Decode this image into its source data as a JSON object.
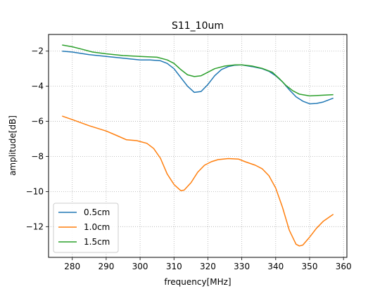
{
  "chart_data": {
    "type": "line",
    "title": "S11_10um",
    "xlabel": "frequency[MHz]",
    "ylabel": "amplitude[dB]",
    "xlim": [
      273,
      361
    ],
    "ylim": [
      -13.75,
      -1.05
    ],
    "xticks": [
      280,
      290,
      300,
      310,
      320,
      330,
      340,
      350,
      360
    ],
    "yticks": [
      -2,
      -4,
      -6,
      -8,
      -10,
      -12
    ],
    "xtick_labels": [
      "280",
      "290",
      "300",
      "310",
      "320",
      "330",
      "340",
      "350",
      "360"
    ],
    "ytick_labels": [
      "−2",
      "−4",
      "−6",
      "−8",
      "−10",
      "−12"
    ],
    "grid": true,
    "legend_position": "lower-left",
    "series": [
      {
        "name": "0.5cm",
        "color": "#1f77b4",
        "points": [
          [
            277,
            -2.0
          ],
          [
            280,
            -2.05
          ],
          [
            285,
            -2.2
          ],
          [
            290,
            -2.3
          ],
          [
            295,
            -2.4
          ],
          [
            300,
            -2.5
          ],
          [
            303,
            -2.5
          ],
          [
            306,
            -2.55
          ],
          [
            308,
            -2.7
          ],
          [
            310,
            -3.0
          ],
          [
            312,
            -3.5
          ],
          [
            314,
            -4.0
          ],
          [
            316,
            -4.35
          ],
          [
            318,
            -4.3
          ],
          [
            320,
            -3.9
          ],
          [
            322,
            -3.4
          ],
          [
            324,
            -3.05
          ],
          [
            326,
            -2.88
          ],
          [
            328,
            -2.8
          ],
          [
            330,
            -2.78
          ],
          [
            333,
            -2.88
          ],
          [
            336,
            -3.0
          ],
          [
            338,
            -3.15
          ],
          [
            340,
            -3.4
          ],
          [
            342,
            -3.75
          ],
          [
            344,
            -4.2
          ],
          [
            346,
            -4.6
          ],
          [
            348,
            -4.85
          ],
          [
            350,
            -5.0
          ],
          [
            352,
            -4.98
          ],
          [
            354,
            -4.9
          ],
          [
            357,
            -4.68
          ]
        ]
      },
      {
        "name": "1.0cm",
        "color": "#ff7f0e",
        "points": [
          [
            277,
            -5.7
          ],
          [
            280,
            -5.9
          ],
          [
            285,
            -6.25
          ],
          [
            290,
            -6.55
          ],
          [
            293,
            -6.8
          ],
          [
            296,
            -7.05
          ],
          [
            299,
            -7.1
          ],
          [
            302,
            -7.25
          ],
          [
            304,
            -7.55
          ],
          [
            306,
            -8.1
          ],
          [
            308,
            -9.0
          ],
          [
            310,
            -9.6
          ],
          [
            312,
            -9.95
          ],
          [
            313,
            -9.92
          ],
          [
            315,
            -9.5
          ],
          [
            317,
            -8.9
          ],
          [
            319,
            -8.5
          ],
          [
            321,
            -8.3
          ],
          [
            323,
            -8.18
          ],
          [
            326,
            -8.12
          ],
          [
            329,
            -8.15
          ],
          [
            331,
            -8.3
          ],
          [
            334,
            -8.5
          ],
          [
            336,
            -8.7
          ],
          [
            338,
            -9.1
          ],
          [
            340,
            -9.8
          ],
          [
            342,
            -10.9
          ],
          [
            344,
            -12.2
          ],
          [
            346,
            -13.0
          ],
          [
            347,
            -13.1
          ],
          [
            348,
            -13.05
          ],
          [
            350,
            -12.6
          ],
          [
            352,
            -12.1
          ],
          [
            354,
            -11.7
          ],
          [
            357,
            -11.3
          ]
        ]
      },
      {
        "name": "1.5cm",
        "color": "#2ca02c",
        "points": [
          [
            277,
            -1.65
          ],
          [
            280,
            -1.75
          ],
          [
            283,
            -1.9
          ],
          [
            286,
            -2.05
          ],
          [
            290,
            -2.15
          ],
          [
            295,
            -2.25
          ],
          [
            300,
            -2.3
          ],
          [
            305,
            -2.35
          ],
          [
            308,
            -2.5
          ],
          [
            310,
            -2.7
          ],
          [
            312,
            -3.05
          ],
          [
            314,
            -3.35
          ],
          [
            316,
            -3.45
          ],
          [
            318,
            -3.4
          ],
          [
            320,
            -3.2
          ],
          [
            322,
            -3.0
          ],
          [
            325,
            -2.85
          ],
          [
            328,
            -2.78
          ],
          [
            330,
            -2.78
          ],
          [
            333,
            -2.85
          ],
          [
            336,
            -2.98
          ],
          [
            339,
            -3.2
          ],
          [
            341,
            -3.55
          ],
          [
            343,
            -3.95
          ],
          [
            345,
            -4.25
          ],
          [
            347,
            -4.45
          ],
          [
            350,
            -4.55
          ],
          [
            353,
            -4.52
          ],
          [
            357,
            -4.48
          ]
        ]
      }
    ]
  }
}
